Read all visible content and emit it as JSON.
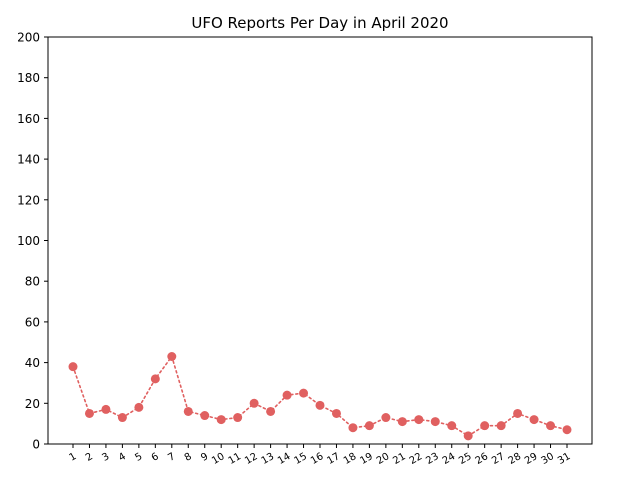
{
  "chart_data": {
    "type": "line",
    "title": "UFO Reports Per Day in April 2020",
    "xlabel": "",
    "ylabel": "",
    "categories": [
      "1",
      "2",
      "3",
      "4",
      "5",
      "6",
      "7",
      "8",
      "9",
      "10",
      "11",
      "12",
      "13",
      "14",
      "15",
      "16",
      "17",
      "18",
      "19",
      "20",
      "21",
      "22",
      "23",
      "24",
      "25",
      "26",
      "27",
      "28",
      "29",
      "30",
      "31"
    ],
    "series": [
      {
        "values": [
          38,
          15,
          17,
          13,
          18,
          32,
          43,
          16,
          14,
          12,
          13,
          20,
          16,
          24,
          25,
          19,
          15,
          8,
          9,
          13,
          11,
          12,
          11,
          9,
          4,
          9,
          9,
          15,
          12,
          9,
          7
        ]
      }
    ],
    "ylim": [
      0,
      200
    ],
    "yticks": [
      0,
      20,
      40,
      60,
      80,
      100,
      120,
      140,
      160,
      180,
      200
    ],
    "grid": false,
    "line_style": "dotted",
    "marker": "circle",
    "colors": {
      "series": "#e06060"
    }
  }
}
